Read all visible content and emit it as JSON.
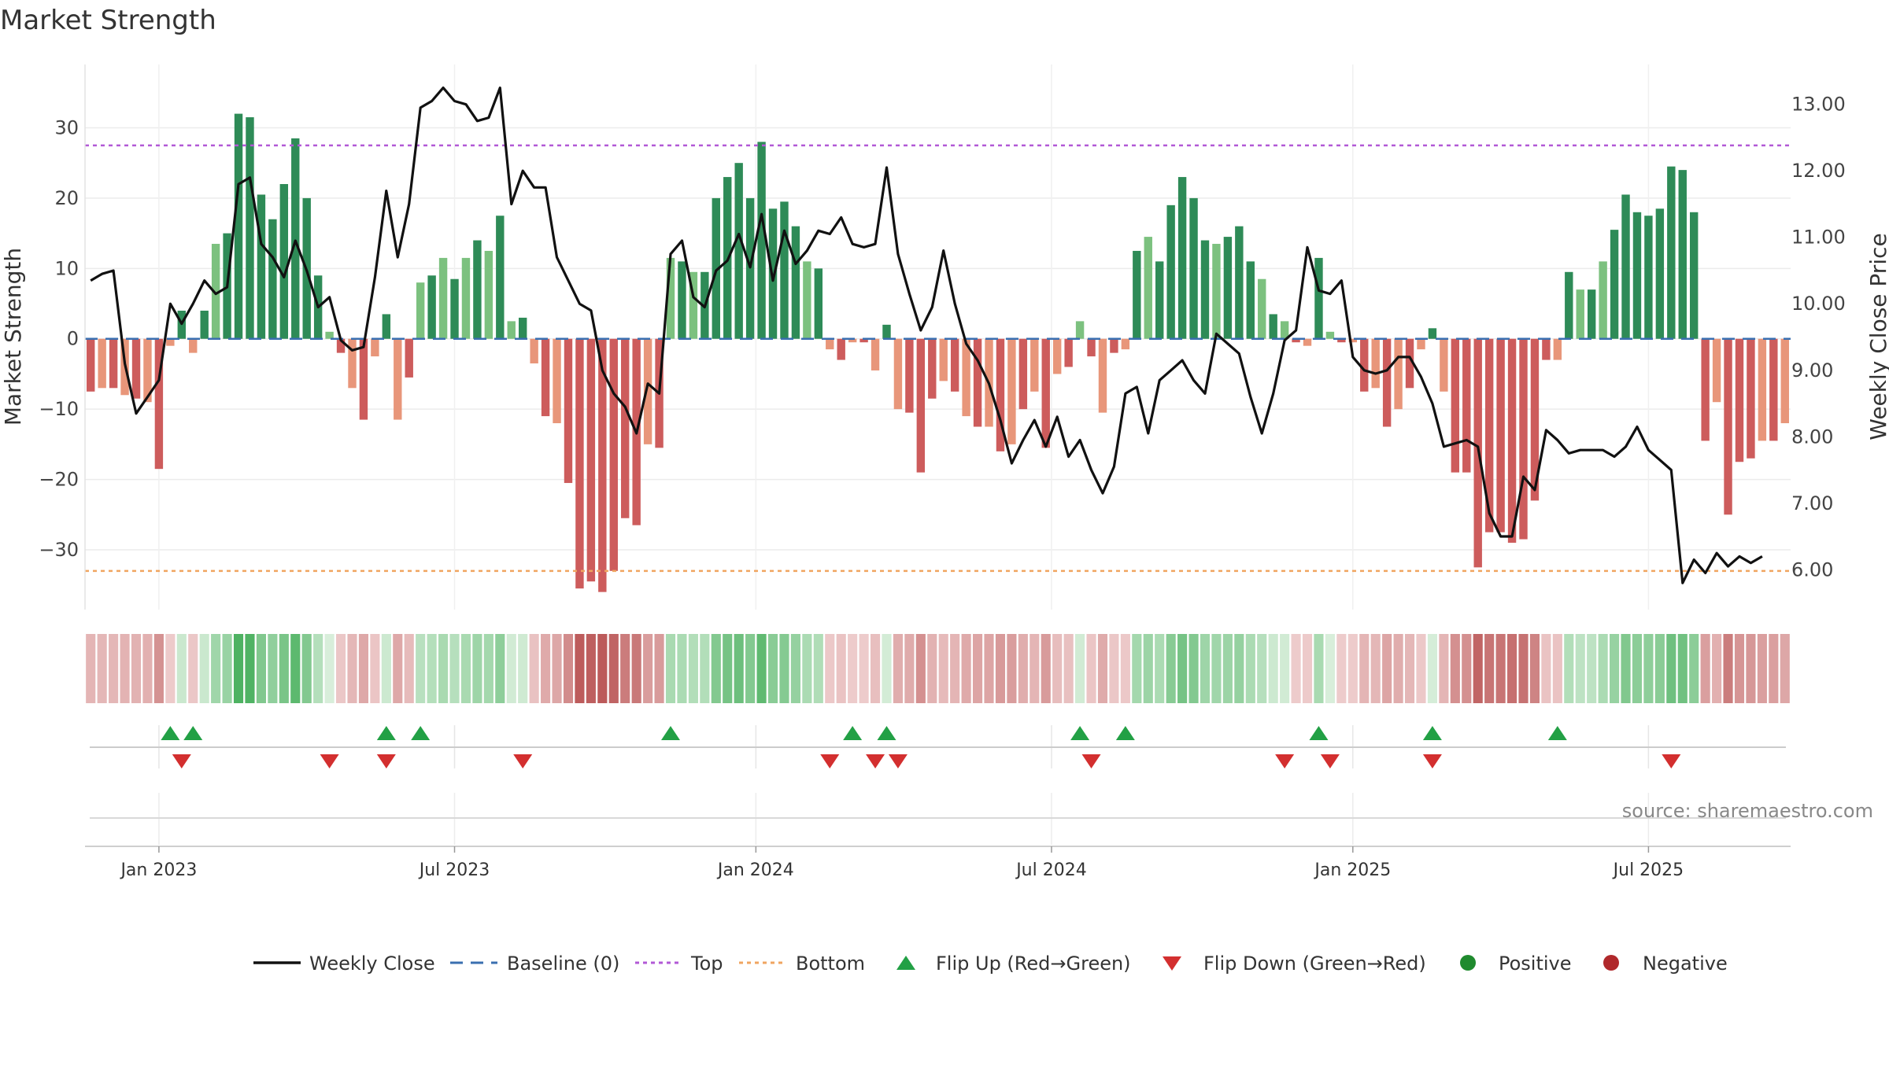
{
  "chart_data": {
    "type": "bar",
    "title": "Market Strength",
    "ylabel_left": "Market Strength",
    "ylabel_right": "Weekly Close Price",
    "source": "source: sharemaestro.com",
    "x_tick_labels": [
      "Jan 2023",
      "Jul 2023",
      "Jan 2024",
      "Jul 2024",
      "Jan 2025",
      "Jul 2025"
    ],
    "x_tick_positions": [
      6,
      32,
      58.5,
      84.5,
      111,
      137
    ],
    "yleft_ticks": [
      30,
      20,
      10,
      0,
      -10,
      -20,
      -30
    ],
    "yleft_tick_labels": [
      "30",
      "20",
      "10",
      "0",
      "−10",
      "−20",
      "−30"
    ],
    "yleft_range": [
      -38.5,
      39
    ],
    "yright_ticks": [
      13.0,
      12.0,
      11.0,
      10.0,
      9.0,
      8.0,
      7.0,
      6.0
    ],
    "yright_tick_labels": [
      "13.00",
      "12.00",
      "11.00",
      "10.00",
      "9.00",
      "8.00",
      "7.00",
      "6.00"
    ],
    "yright_range": [
      5.4,
      13.6
    ],
    "top_line": 27.5,
    "bottom_line": -33,
    "baseline": 0,
    "strength": [
      -7.5,
      -7,
      -7,
      -8,
      -8.5,
      -9,
      -18.5,
      -1,
      4,
      -2,
      4,
      13.5,
      15,
      32,
      31.5,
      20.5,
      17,
      22,
      28.5,
      20,
      9,
      1,
      -2,
      -7,
      -11.5,
      -2.5,
      3.5,
      -11.5,
      -5.5,
      8,
      9,
      11.5,
      8.5,
      11.5,
      14,
      12.5,
      17.5,
      2.5,
      3,
      -3.5,
      -11,
      -12,
      -20.5,
      -35.5,
      -34.5,
      -36,
      -33,
      -25.5,
      -26.5,
      -15,
      -15.5,
      11.5,
      11,
      9.5,
      9.5,
      20,
      23,
      25,
      20,
      28,
      18.5,
      19.5,
      16,
      11,
      10,
      -1.5,
      -3,
      -0.5,
      -0.5,
      -4.5,
      2,
      -10,
      -10.5,
      -19,
      -8.5,
      -6,
      -7.5,
      -11,
      -12.5,
      -12.5,
      -16,
      -15,
      -10,
      -7.5,
      -15.5,
      -5,
      -4,
      2.5,
      -2.5,
      -10.5,
      -2,
      -1.5,
      12.5,
      14.5,
      11,
      19,
      23,
      20,
      14,
      13.5,
      14.5,
      16,
      11,
      8.5,
      3.5,
      2.5,
      -0.5,
      -1,
      11.5,
      1,
      -0.5,
      -0.5,
      -7.5,
      -7,
      -12.5,
      -10,
      -7,
      -1.5,
      1.5,
      -7.5,
      -19,
      -19,
      -32.5,
      -27.5,
      -27.5,
      -29,
      -28.5,
      -23,
      -3,
      -3,
      9.5,
      7,
      7,
      11,
      15.5,
      20.5,
      18,
      17.5,
      18.5,
      24.5,
      24,
      18,
      -14.5,
      -9,
      -25,
      -17.5,
      -17,
      -14.5,
      -14.5,
      -12
    ],
    "weekly_close": [
      10.35,
      10.45,
      10.5,
      9.1,
      8.35,
      8.6,
      8.85,
      10.0,
      9.7,
      10.0,
      10.35,
      10.15,
      10.25,
      11.8,
      11.9,
      10.9,
      10.7,
      10.4,
      10.95,
      10.5,
      9.95,
      10.1,
      9.45,
      9.3,
      9.35,
      10.4,
      11.7,
      10.7,
      11.5,
      12.95,
      13.05,
      13.25,
      13.05,
      13.0,
      12.75,
      12.8,
      13.25,
      11.5,
      12.0,
      11.75,
      11.75,
      10.7,
      10.35,
      10.0,
      9.9,
      9.0,
      8.65,
      8.45,
      8.05,
      8.8,
      8.65,
      10.75,
      10.95,
      10.1,
      9.95,
      10.5,
      10.65,
      11.05,
      10.55,
      11.35,
      10.35,
      11.1,
      10.6,
      10.8,
      11.1,
      11.05,
      11.3,
      10.9,
      10.85,
      10.9,
      12.05,
      10.75,
      10.15,
      9.6,
      9.95,
      10.8,
      10.0,
      9.4,
      9.15,
      8.8,
      8.25,
      7.6,
      7.95,
      8.25,
      7.85,
      8.3,
      7.7,
      7.95,
      7.5,
      7.15,
      7.55,
      8.65,
      8.75,
      8.05,
      8.85,
      9.0,
      9.15,
      8.85,
      8.65,
      9.55,
      9.4,
      9.25,
      8.6,
      8.05,
      8.65,
      9.45,
      9.6,
      10.85,
      10.2,
      10.15,
      10.35,
      9.2,
      9.0,
      8.95,
      9.0,
      9.2,
      9.2,
      8.9,
      8.5,
      7.85,
      7.9,
      7.95,
      7.85,
      6.85,
      6.5,
      6.5,
      7.4,
      7.2,
      8.1,
      7.95,
      7.75,
      7.8,
      7.8,
      7.8,
      7.7,
      7.85,
      8.15,
      7.8,
      7.65,
      7.5,
      5.8,
      6.15,
      5.95,
      6.25,
      6.05,
      6.2,
      6.1,
      6.2
    ],
    "flip_up": [
      7,
      9,
      26,
      29,
      51,
      67,
      70,
      87,
      91,
      108,
      118,
      129
    ],
    "flip_down": [
      8,
      21,
      26,
      38,
      65,
      69,
      71,
      88,
      105,
      109,
      118,
      139
    ],
    "legend": [
      "Weekly Close",
      "Baseline (0)",
      "Top",
      "Bottom",
      "Flip Up (Red→Green)",
      "Flip Down (Green→Red)",
      "Positive",
      "Negative"
    ],
    "colors": {
      "line": "#111111",
      "baseline": "#3a6fb0",
      "top": "#b259d6",
      "bottom": "#f0a560",
      "flip_up": "#22a045",
      "flip_down": "#d32f2f",
      "positive": "#1f8a2e",
      "negative": "#b0282b",
      "pos_dark": "#2e8b57",
      "pos_light": "#7cc17f",
      "neg_dark": "#cd5c5c",
      "neg_light": "#e8967a"
    }
  }
}
